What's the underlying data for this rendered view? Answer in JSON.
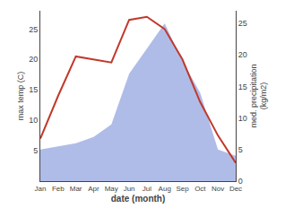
{
  "chart_data": {
    "type": "line",
    "categories": [
      "Jan",
      "Feb",
      "Mar",
      "Apr",
      "May",
      "Jun",
      "Jul",
      "Aug",
      "Sep",
      "Oct",
      "Nov",
      "Dec"
    ],
    "xlabel": "date (month)",
    "ylabel": "max temp (C)",
    "y2label": "med. precipitation\n(kg/m2)",
    "ylim": [
      0,
      28
    ],
    "yticks": [
      5,
      10,
      15,
      20,
      25
    ],
    "y2lim": [
      0,
      27
    ],
    "y2ticks": [
      0,
      5,
      10,
      15,
      20,
      25
    ],
    "grid": false,
    "series": [
      {
        "type": "area",
        "axis": "y2",
        "color": "#b0bce8",
        "values": [
          5,
          5.5,
          6,
          7,
          9,
          17,
          21,
          25,
          19,
          14,
          5,
          4
        ]
      },
      {
        "type": "line",
        "color": "#c0392b",
        "values": [
          7,
          14,
          20.5,
          20,
          19.5,
          26.5,
          27,
          25,
          20,
          13,
          7.5,
          3
        ]
      }
    ]
  }
}
